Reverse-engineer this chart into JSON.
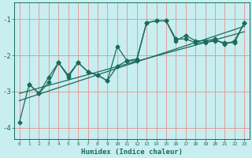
{
  "xlabel": "Humidex (Indice chaleur)",
  "bg_color": "#c8eef0",
  "grid_color": "#e89090",
  "line_color": "#1a6b5a",
  "xlim": [
    -0.5,
    23.5
  ],
  "ylim": [
    -4.3,
    -0.55
  ],
  "yticks": [
    -4,
    -3,
    -2,
    -1
  ],
  "xticks": [
    0,
    1,
    2,
    3,
    4,
    5,
    6,
    7,
    8,
    9,
    10,
    11,
    12,
    13,
    14,
    15,
    16,
    17,
    18,
    19,
    20,
    21,
    22,
    23
  ],
  "line1_x": [
    0,
    1,
    2,
    3,
    4,
    5,
    6,
    7,
    8,
    9,
    10,
    11,
    12,
    13,
    14,
    15,
    16,
    17,
    18,
    19,
    20,
    21,
    22,
    23
  ],
  "line1_y": [
    -3.85,
    -2.8,
    -3.05,
    -2.6,
    -2.2,
    -2.55,
    -2.2,
    -2.45,
    -2.55,
    -2.7,
    -1.75,
    -2.15,
    -2.1,
    -1.1,
    -1.05,
    -1.05,
    -1.6,
    -1.45,
    -1.6,
    -1.6,
    -1.55,
    -1.7,
    -1.6,
    -1.1
  ],
  "line2_x": [
    1,
    2,
    3,
    4,
    5,
    6,
    7,
    8,
    9,
    10,
    11,
    12,
    13,
    14,
    15,
    16,
    17,
    18,
    19,
    20,
    21,
    22,
    23
  ],
  "line2_y": [
    -2.8,
    -3.05,
    -2.75,
    -2.2,
    -2.6,
    -2.2,
    -2.45,
    -2.55,
    -2.7,
    -2.3,
    -2.15,
    -2.15,
    -1.1,
    -1.05,
    -1.05,
    -1.55,
    -1.55,
    -1.65,
    -1.65,
    -1.6,
    -1.65,
    -1.65,
    -1.1
  ],
  "line3_x": [
    0,
    23
  ],
  "line3_y": [
    -3.25,
    -1.2
  ],
  "line4_x": [
    0,
    23
  ],
  "line4_y": [
    -3.05,
    -1.35
  ]
}
